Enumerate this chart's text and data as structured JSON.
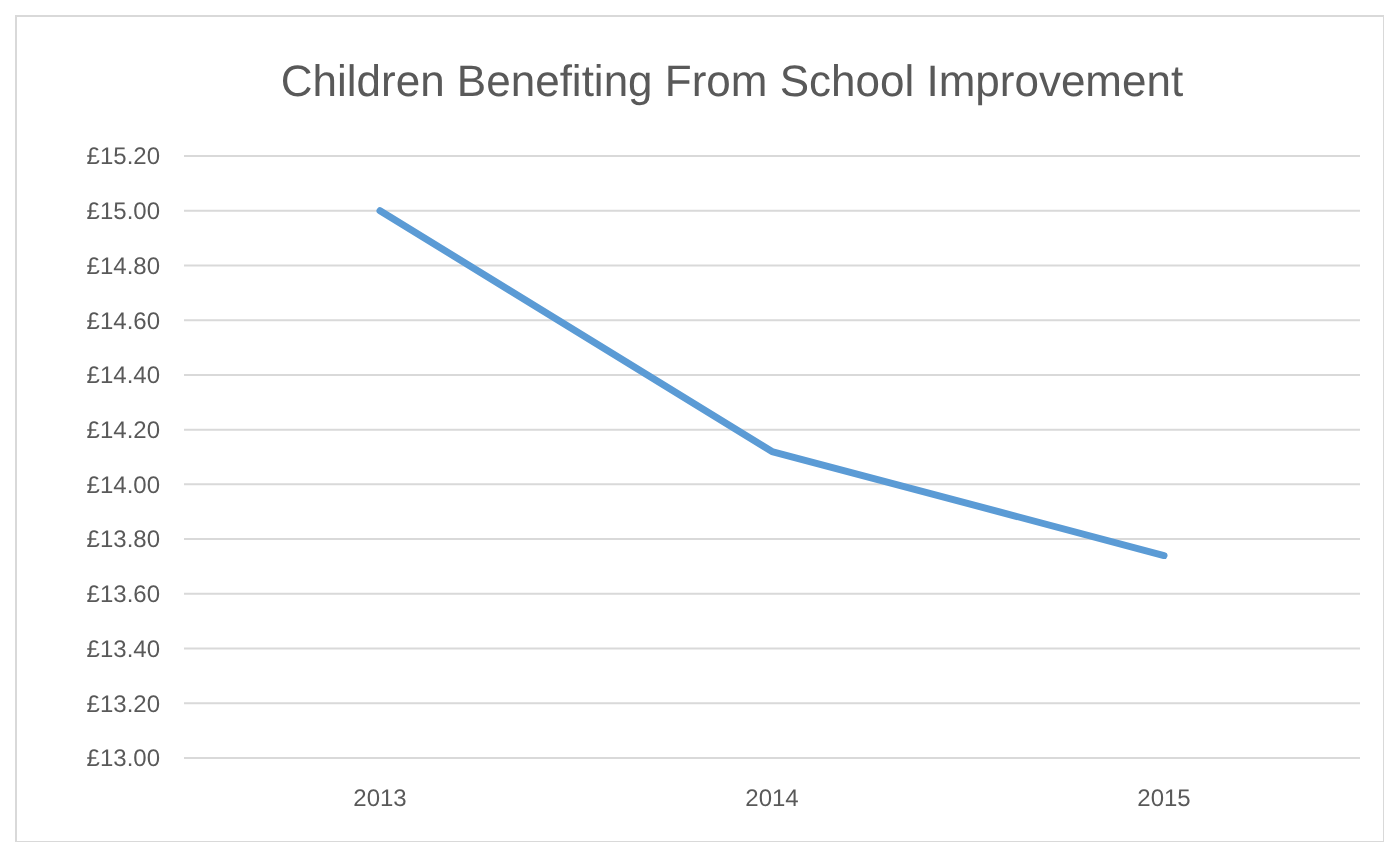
{
  "chart_data": {
    "type": "line",
    "title": "Children Benefiting From School Improvement",
    "categories": [
      "2013",
      "2014",
      "2015"
    ],
    "series": [
      {
        "color": "#5b9bd5",
        "values": [
          15.0,
          14.12,
          13.74
        ]
      }
    ],
    "ylim": [
      13.0,
      15.2
    ],
    "yticks": [
      {
        "value": 13.0,
        "label": "£13.00"
      },
      {
        "value": 13.2,
        "label": "£13.20"
      },
      {
        "value": 13.4,
        "label": "£13.40"
      },
      {
        "value": 13.6,
        "label": "£13.60"
      },
      {
        "value": 13.8,
        "label": "£13.80"
      },
      {
        "value": 14.0,
        "label": "£14.00"
      },
      {
        "value": 14.2,
        "label": "£14.20"
      },
      {
        "value": 14.4,
        "label": "£14.40"
      },
      {
        "value": 14.6,
        "label": "£14.60"
      },
      {
        "value": 14.8,
        "label": "£14.80"
      },
      {
        "value": 15.0,
        "label": "£15.00"
      },
      {
        "value": 15.2,
        "label": "£15.20"
      }
    ],
    "grid": "y",
    "marker": "none",
    "line_style": "solid"
  }
}
